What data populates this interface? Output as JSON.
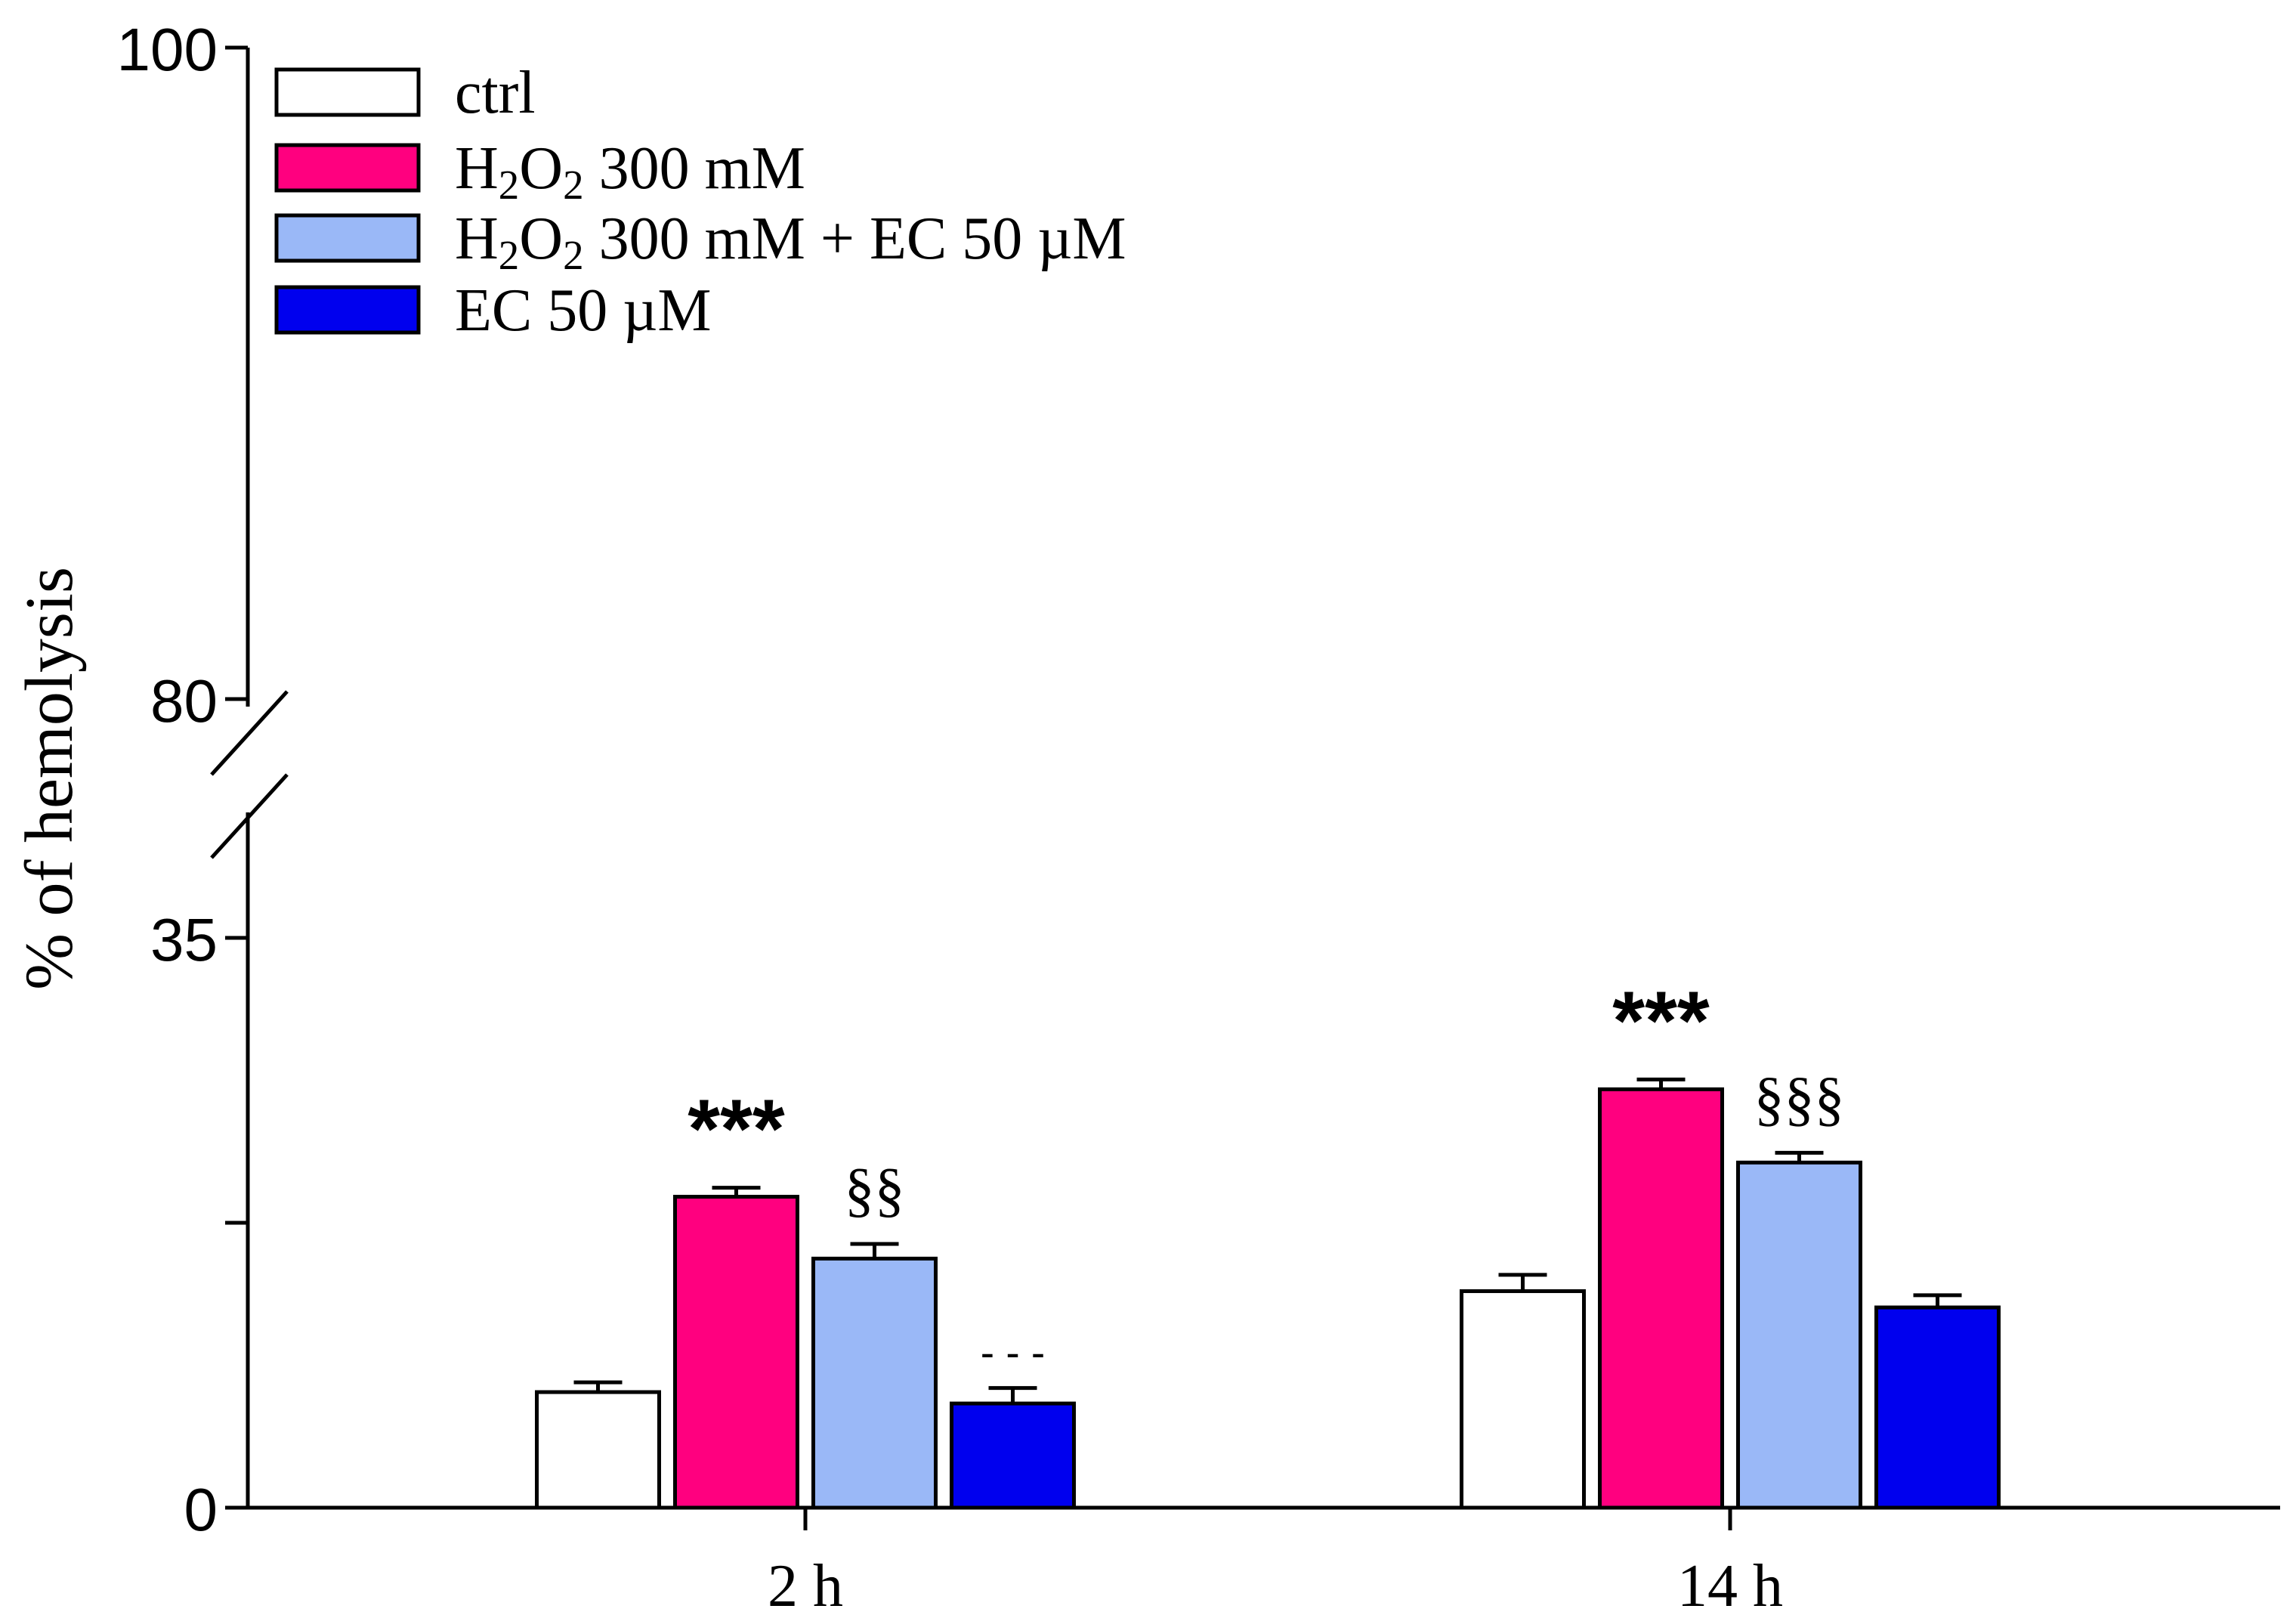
{
  "chart_data": {
    "type": "bar",
    "title": "",
    "xlabel": "",
    "ylabel": "% of hemolysis",
    "ylim": [
      0,
      100
    ],
    "axis_break": {
      "from": 35,
      "to": 80
    },
    "y_ticks": [
      0,
      17.5,
      35,
      80,
      100
    ],
    "y_tick_labels": {
      "0": "0",
      "35": "35",
      "80": "80",
      "100": "100"
    },
    "categories": [
      "2 h",
      "14 h"
    ],
    "series": [
      {
        "name": "ctrl",
        "color": "#ffffff",
        "values": [
          7.1,
          13.3
        ],
        "errors": [
          0.6,
          1.0
        ]
      },
      {
        "name": "H2O2 300 mM",
        "color": "#ff007f",
        "values": [
          19.1,
          25.7
        ],
        "errors": [
          0.55,
          0.6
        ]
      },
      {
        "name": "H2O2 300 mM + EC 50 µM",
        "color": "#9ab8f7",
        "values": [
          15.3,
          21.2
        ],
        "errors": [
          0.9,
          0.6
        ]
      },
      {
        "name": "EC 50 µM",
        "color": "#0000ee",
        "values": [
          6.4,
          12.3
        ],
        "errors": [
          0.95,
          0.75
        ]
      }
    ],
    "legend": {
      "placement": "top-left",
      "entries": [
        {
          "base": "ctrl",
          "sub_a": "",
          "mid": "",
          "sub_b": "",
          "tail": ""
        },
        {
          "base": "H",
          "sub_a": "2",
          "mid": "O",
          "sub_b": "2",
          "tail": " 300 mM"
        },
        {
          "base": "H",
          "sub_a": "2",
          "mid": "O",
          "sub_b": "2",
          "tail": " 300 mM + EC 50 µM"
        },
        {
          "base": "EC 50 µM",
          "sub_a": "",
          "mid": "",
          "sub_b": "",
          "tail": ""
        }
      ]
    },
    "annotations": [
      {
        "category": 0,
        "series": 1,
        "text": "***"
      },
      {
        "category": 0,
        "series": 2,
        "text": "§§"
      },
      {
        "category": 0,
        "series": 3,
        "text": "- - -"
      },
      {
        "category": 1,
        "series": 1,
        "text": "***"
      },
      {
        "category": 1,
        "series": 2,
        "text": "§§§"
      }
    ]
  }
}
